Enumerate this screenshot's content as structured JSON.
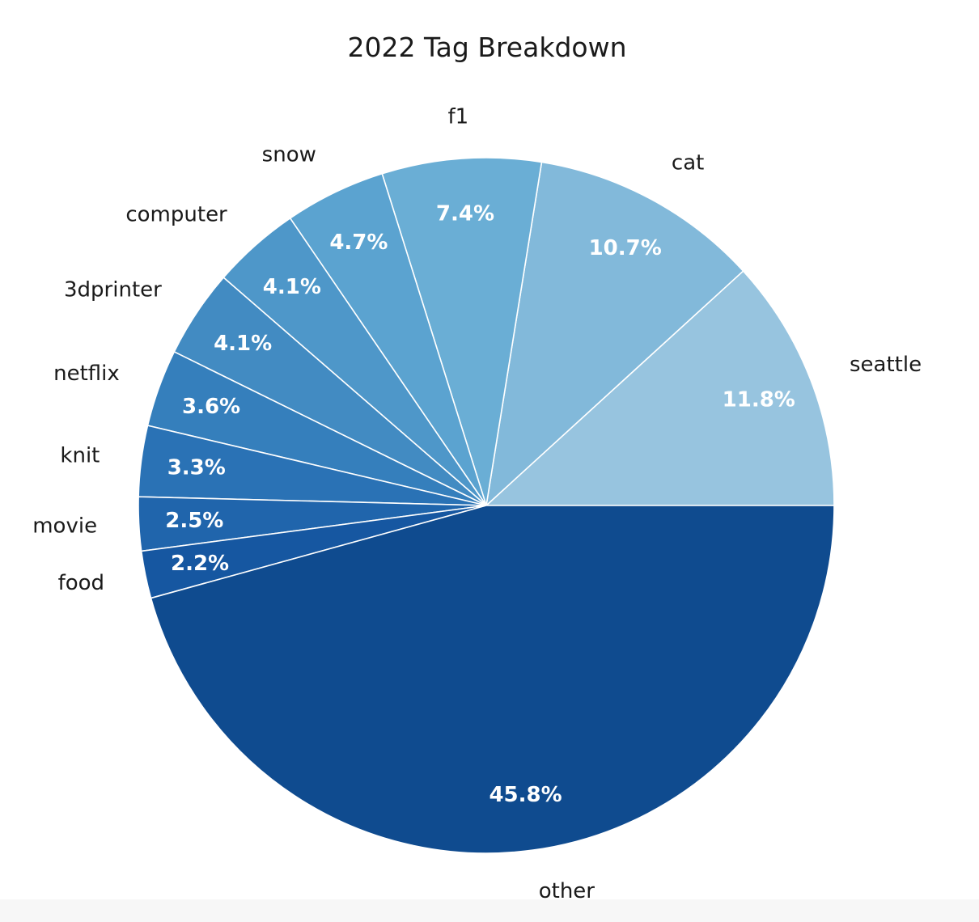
{
  "chart_data": {
    "type": "pie",
    "title": "2022 Tag Breakdown",
    "start_angle_deg": 0,
    "direction": "counterclockwise",
    "slices": [
      {
        "label": "seattle",
        "value": 11.8,
        "pct_label": "11.8%",
        "color": "#97c4df"
      },
      {
        "label": "cat",
        "value": 10.7,
        "pct_label": "10.7%",
        "color": "#82b9da"
      },
      {
        "label": "f1",
        "value": 7.4,
        "pct_label": "7.4%",
        "color": "#6aaed5"
      },
      {
        "label": "snow",
        "value": 4.7,
        "pct_label": "4.7%",
        "color": "#5ba3d0"
      },
      {
        "label": "computer",
        "value": 4.1,
        "pct_label": "4.1%",
        "color": "#4e97c9"
      },
      {
        "label": "3dprinter",
        "value": 4.1,
        "pct_label": "4.1%",
        "color": "#428bc2"
      },
      {
        "label": "netflix",
        "value": 3.6,
        "pct_label": "3.6%",
        "color": "#357fbc"
      },
      {
        "label": "knit",
        "value": 3.3,
        "pct_label": "3.3%",
        "color": "#2a72b5"
      },
      {
        "label": "movie",
        "value": 2.5,
        "pct_label": "2.5%",
        "color": "#2065ac"
      },
      {
        "label": "food",
        "value": 2.2,
        "pct_label": "2.2%",
        "color": "#1657a1"
      },
      {
        "label": "other",
        "value": 45.8,
        "pct_label": "45.8%",
        "color": "#0f4b8f"
      }
    ]
  }
}
